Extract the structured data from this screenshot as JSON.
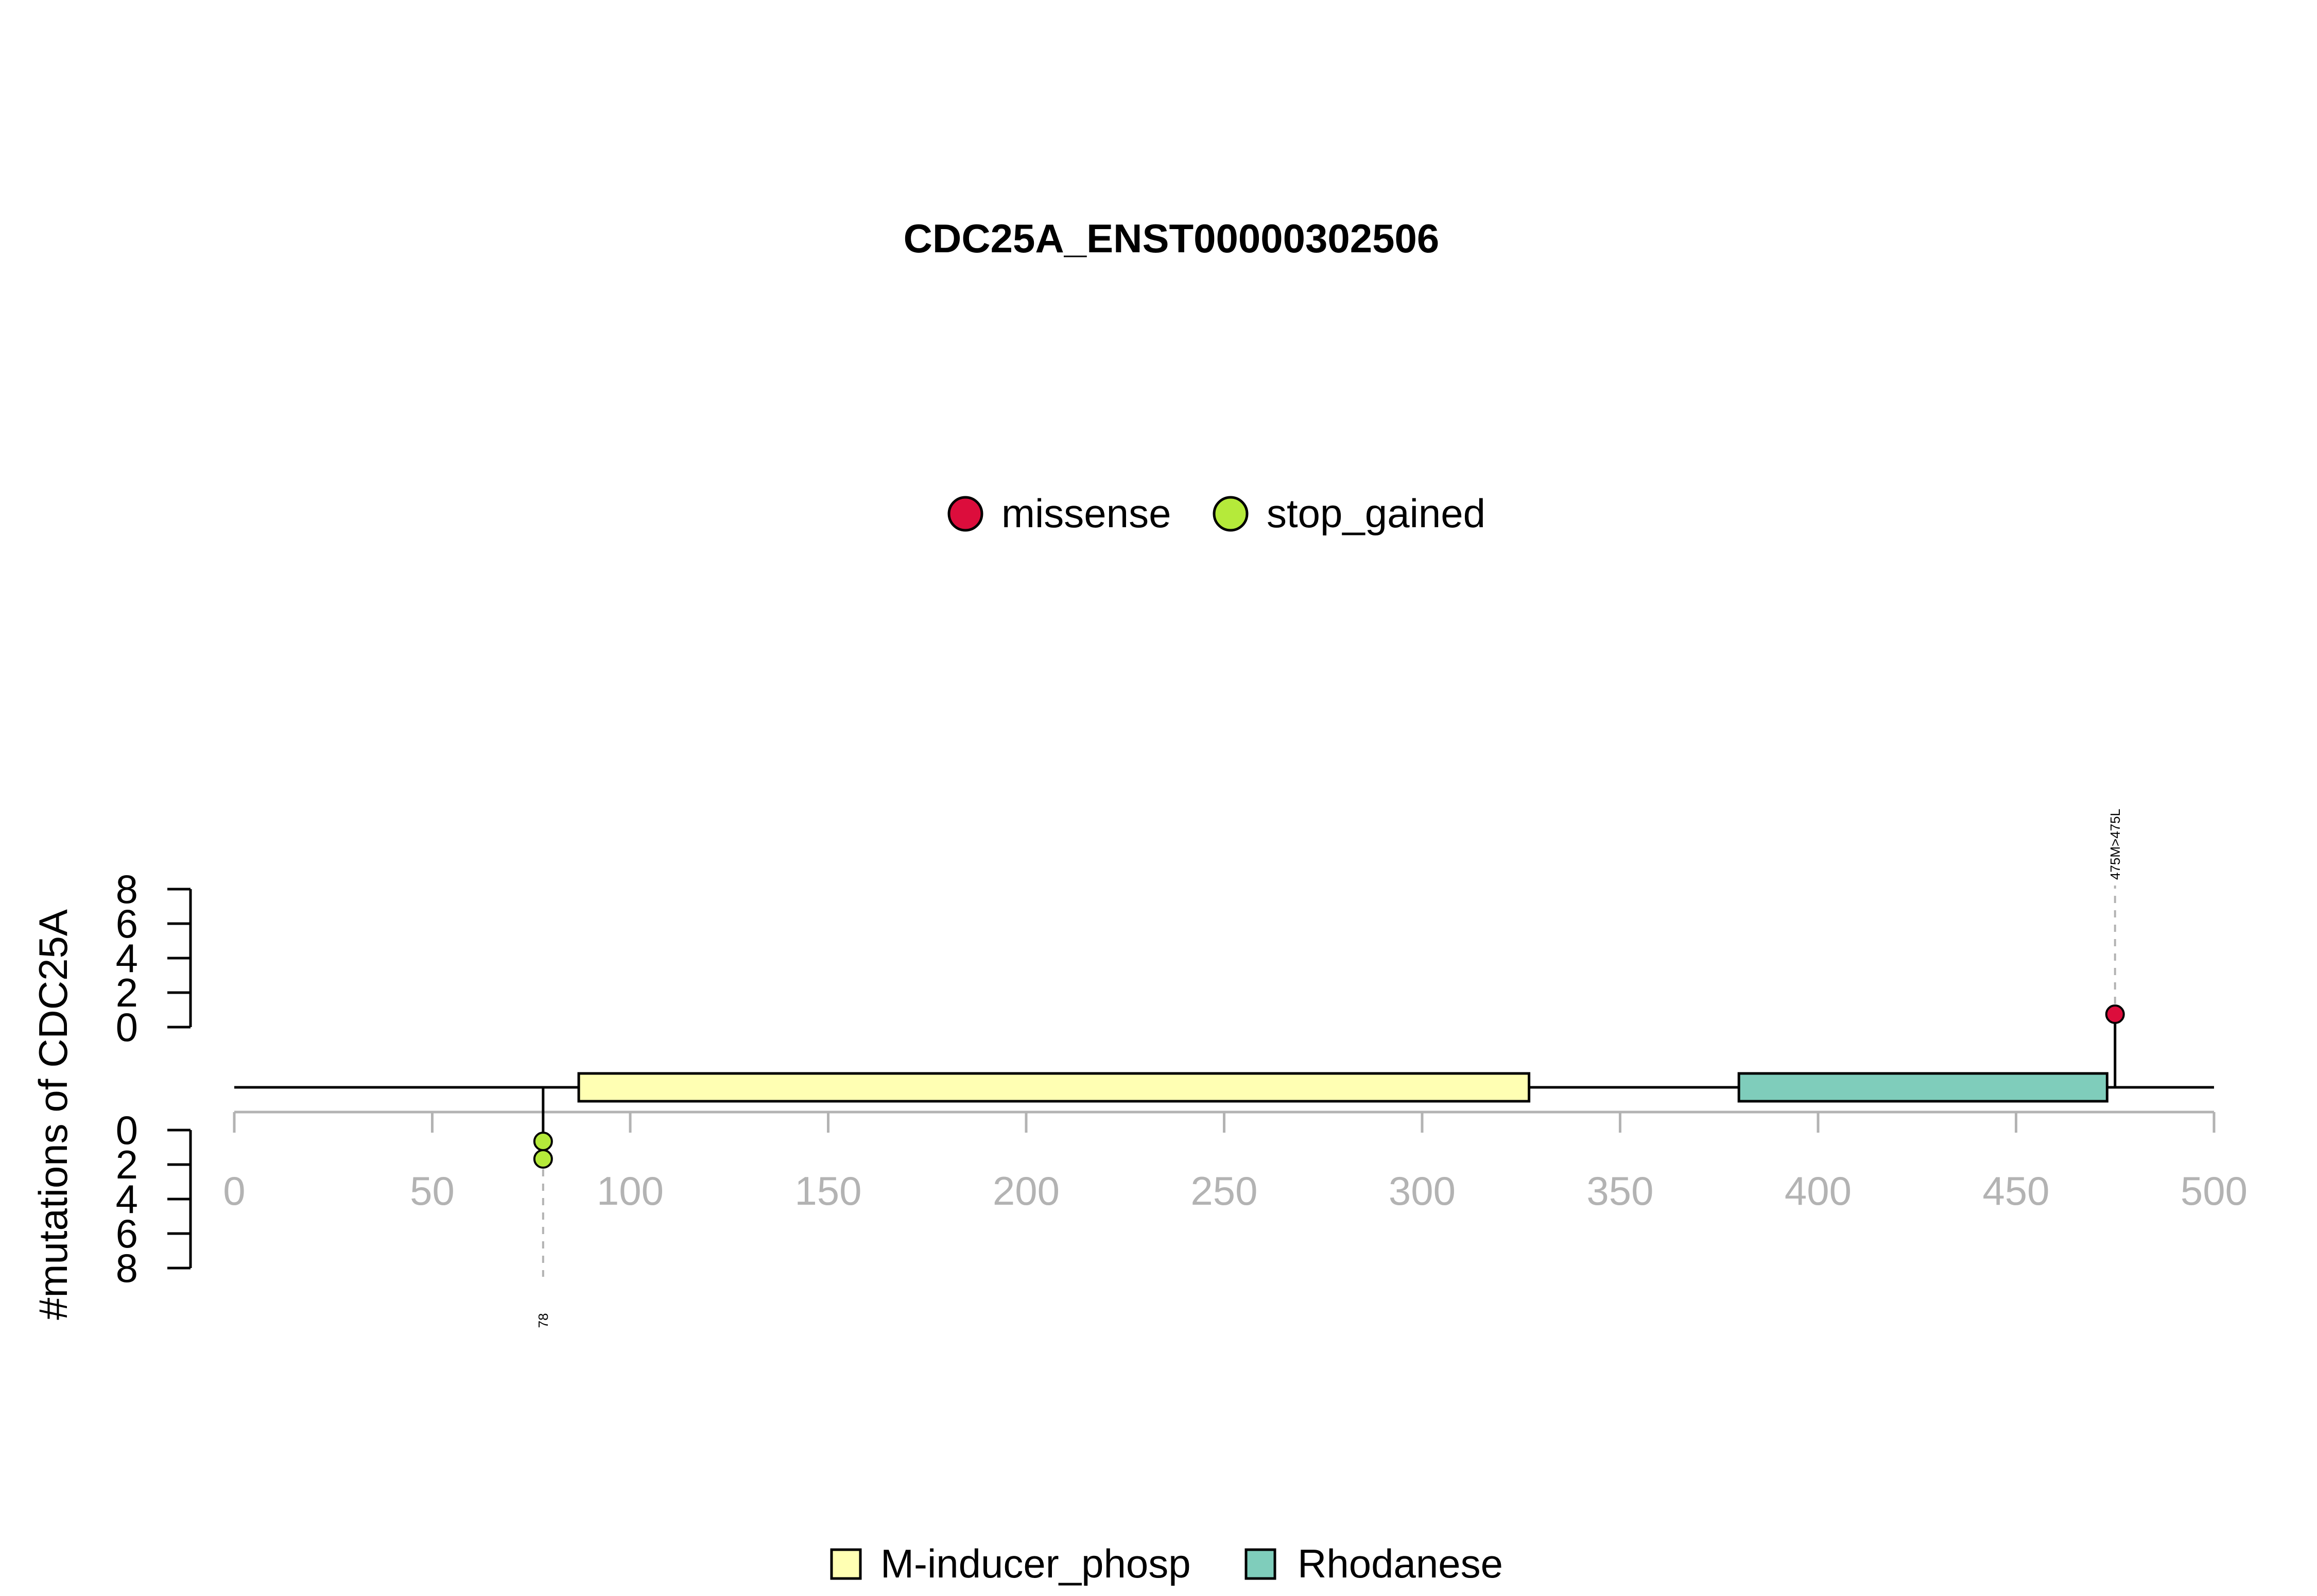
{
  "chart_data": {
    "type": "lollipop",
    "title": "CDC25A_ENST00000302506",
    "ylabel": "#mutations of CDC25A",
    "xlim": [
      0,
      500
    ],
    "x_ticks": [
      0,
      50,
      100,
      150,
      200,
      250,
      300,
      350,
      400,
      450,
      500
    ],
    "y_ticks_top": [
      0,
      2,
      4,
      6,
      8
    ],
    "y_ticks_bottom": [
      0,
      2,
      4,
      6,
      8
    ],
    "mutation_legend": [
      {
        "name": "missense",
        "color": "#DC0D3C"
      },
      {
        "name": "stop_gained",
        "color": "#B5EA3A"
      }
    ],
    "domain_legend": [
      {
        "name": "M-inducer_phosp",
        "color": "#FFFFB3"
      },
      {
        "name": "Rhodanese",
        "color": "#7FCDBB"
      }
    ],
    "domains": [
      {
        "name": "M-inducer_phosp",
        "start": 87,
        "end": 327,
        "color": "#FFFFB3"
      },
      {
        "name": "Rhodanese",
        "start": 380,
        "end": 473,
        "color": "#7FCDBB"
      }
    ],
    "mutations": [
      {
        "position": 475,
        "side": "top",
        "count": 1,
        "type": "missense",
        "color": "#DC0D3C",
        "label": "475M>475L"
      },
      {
        "position": 78,
        "side": "bottom",
        "count": 2,
        "type": "stop_gained",
        "color": "#B5EA3A",
        "label": "78"
      }
    ],
    "protein_length": 500
  }
}
